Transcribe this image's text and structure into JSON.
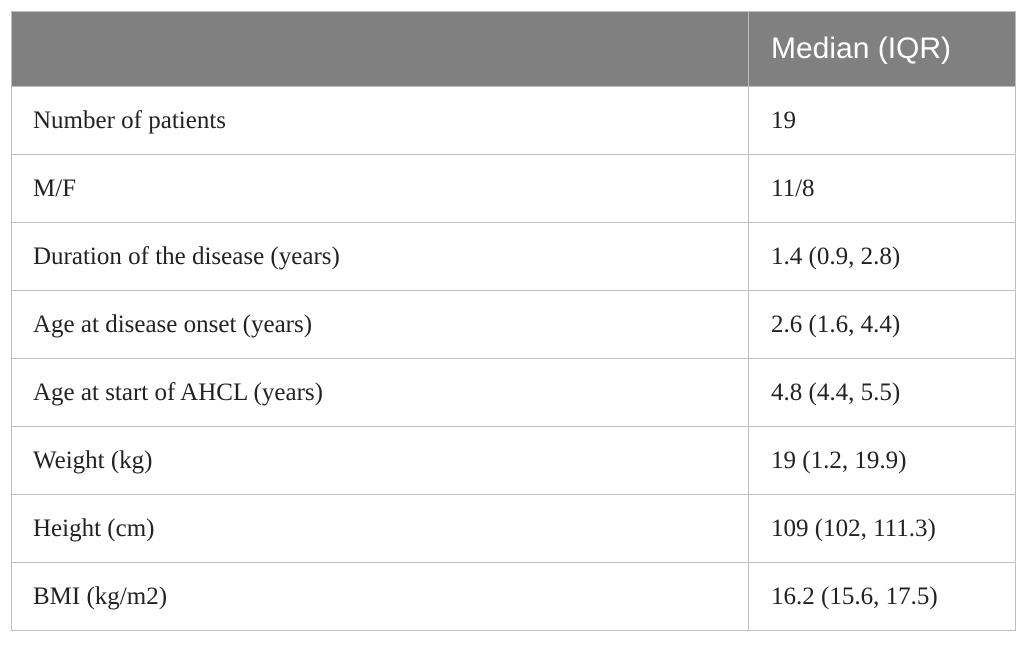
{
  "table": {
    "headers": [
      "",
      "Median (IQR)"
    ],
    "rows": [
      {
        "label": "Number of patients",
        "value": "19"
      },
      {
        "label": "M/F",
        "value": "11/8"
      },
      {
        "label": "Duration of the disease (years)",
        "value": "1.4 (0.9, 2.8)"
      },
      {
        "label": "Age at disease onset (years)",
        "value": "2.6 (1.6, 4.4)"
      },
      {
        "label": "Age at start of AHCL (years)",
        "value": "4.8 (4.4, 5.5)"
      },
      {
        "label": "Weight (kg)",
        "value": "19 (1.2, 19.9)"
      },
      {
        "label": "Height (cm)",
        "value": "109 (102, 111.3)"
      },
      {
        "label": "BMI (kg/m2)",
        "value": "16.2 (15.6, 17.5)"
      }
    ]
  },
  "colors": {
    "header_bg": "#808080",
    "header_text": "#ffffff",
    "border": "#bdbdbd",
    "body_text": "#222222"
  }
}
